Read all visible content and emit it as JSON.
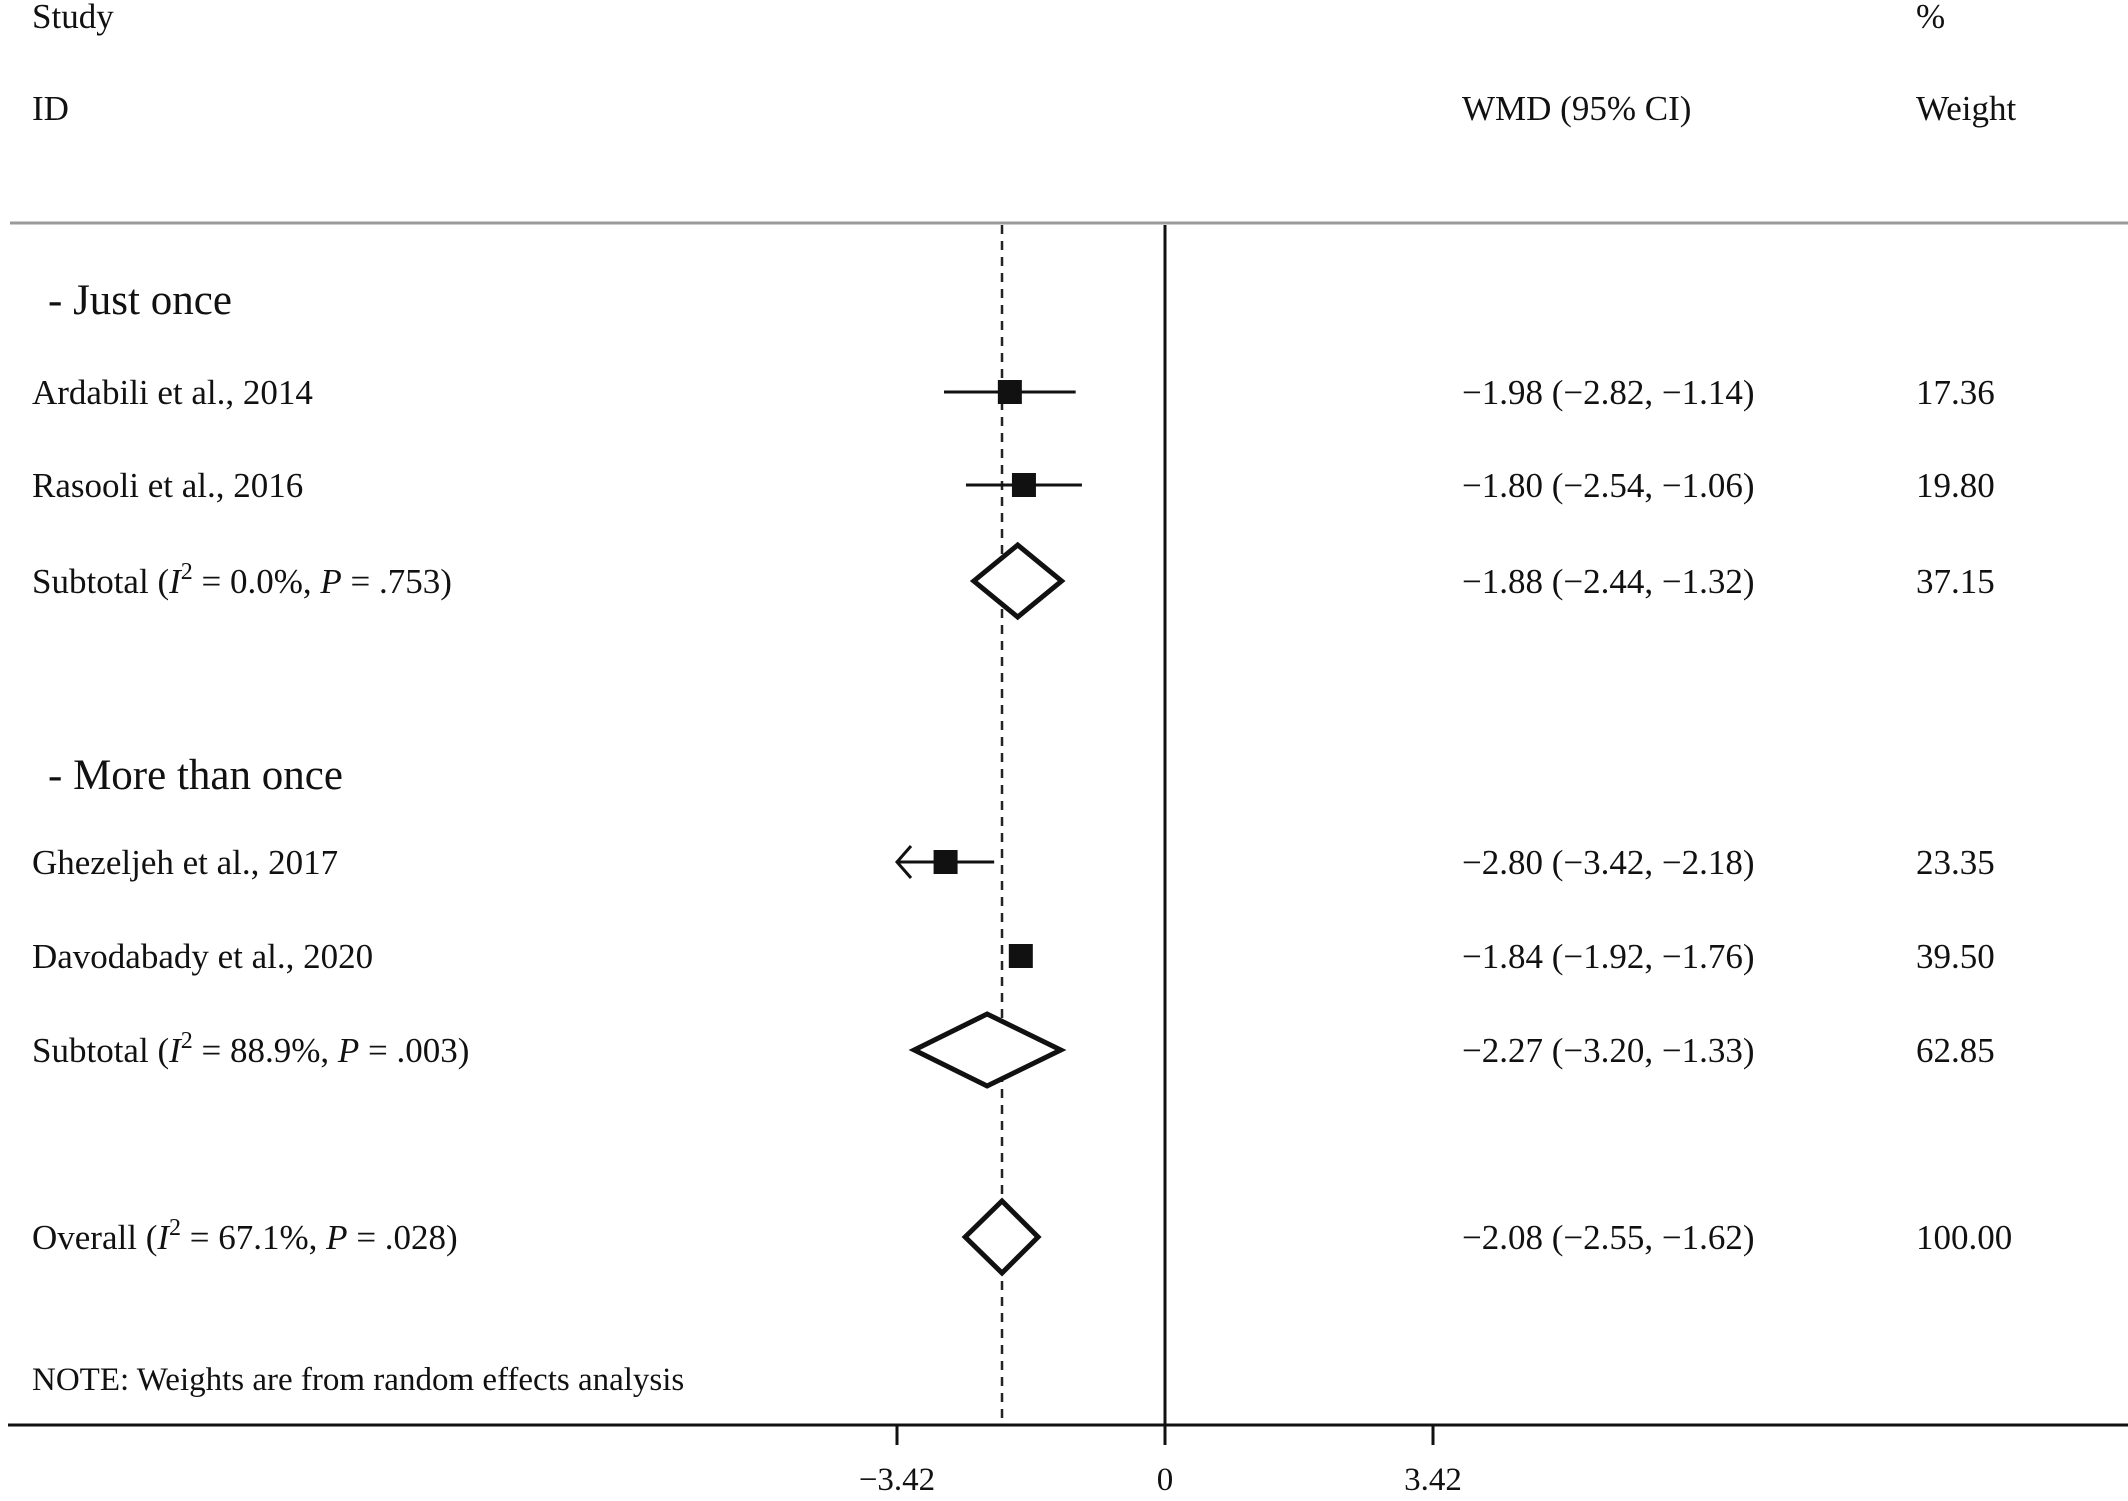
{
  "header": {
    "study": "Study",
    "id": "ID",
    "effect": "WMD (95% CI)",
    "percent": "%",
    "weight": "Weight"
  },
  "note": "NOTE: Weights are from random effects analysis",
  "chart_data": {
    "type": "forest",
    "measure": "WMD (95% CI)",
    "xlim": [
      -3.42,
      3.42
    ],
    "x_ticks": [
      -3.42,
      0,
      3.42
    ],
    "x_tick_labels": [
      "−3.42",
      "0",
      "3.42"
    ],
    "null_line": 0,
    "overall_line": -2.08,
    "rows": [
      {
        "kind": "group",
        "label": "- Just once"
      },
      {
        "kind": "study",
        "label": "Ardabili et al., 2014",
        "est": -1.98,
        "lo": -2.82,
        "hi": -1.14,
        "weight": 17.36,
        "text": "−1.98 (−2.82, −1.14)",
        "weight_text": "17.36"
      },
      {
        "kind": "study",
        "label": "Rasooli et al., 2016",
        "est": -1.8,
        "lo": -2.54,
        "hi": -1.06,
        "weight": 19.8,
        "text": "−1.80 (−2.54, −1.06)",
        "weight_text": "19.80"
      },
      {
        "kind": "subtotal",
        "label": "Subtotal",
        "stat": {
          "pre": "(",
          "i": "I",
          "sup": "2",
          "mid": " = 0.0%, ",
          "p": "P",
          "post": " = .753)"
        },
        "est": -1.88,
        "lo": -2.44,
        "hi": -1.32,
        "weight": 37.15,
        "text": "−1.88 (−2.44, −1.32)",
        "weight_text": "37.15"
      },
      {
        "kind": "group",
        "label": "- More than once"
      },
      {
        "kind": "study",
        "label": "Ghezeljeh et al., 2017",
        "est": -2.8,
        "lo": -3.42,
        "hi": -2.18,
        "weight": 23.35,
        "text": "−2.80 (−3.42, −2.18)",
        "weight_text": "23.35",
        "arrow_left": true
      },
      {
        "kind": "study",
        "label": "Davodabady et al., 2020",
        "est": -1.84,
        "lo": -1.92,
        "hi": -1.76,
        "weight": 39.5,
        "text": "−1.84 (−1.92, −1.76)",
        "weight_text": "39.50"
      },
      {
        "kind": "subtotal",
        "label": "Subtotal",
        "stat": {
          "pre": "(",
          "i": "I",
          "sup": "2",
          "mid": " = 88.9%, ",
          "p": "P",
          "post": " = .003)"
        },
        "est": -2.27,
        "lo": -3.2,
        "hi": -1.33,
        "weight": 62.85,
        "text": "−2.27 (−3.20, −1.33)",
        "weight_text": "62.85"
      },
      {
        "kind": "overall",
        "label": "Overall",
        "stat": {
          "pre": "(",
          "i": "I",
          "sup": "2",
          "mid": " = 67.1%, ",
          "p": "P",
          "post": " = .028)"
        },
        "est": -2.08,
        "lo": -2.55,
        "hi": -1.62,
        "weight": 100.0,
        "text": "−2.08 (−2.55, −1.62)",
        "weight_text": "100.00"
      }
    ]
  }
}
